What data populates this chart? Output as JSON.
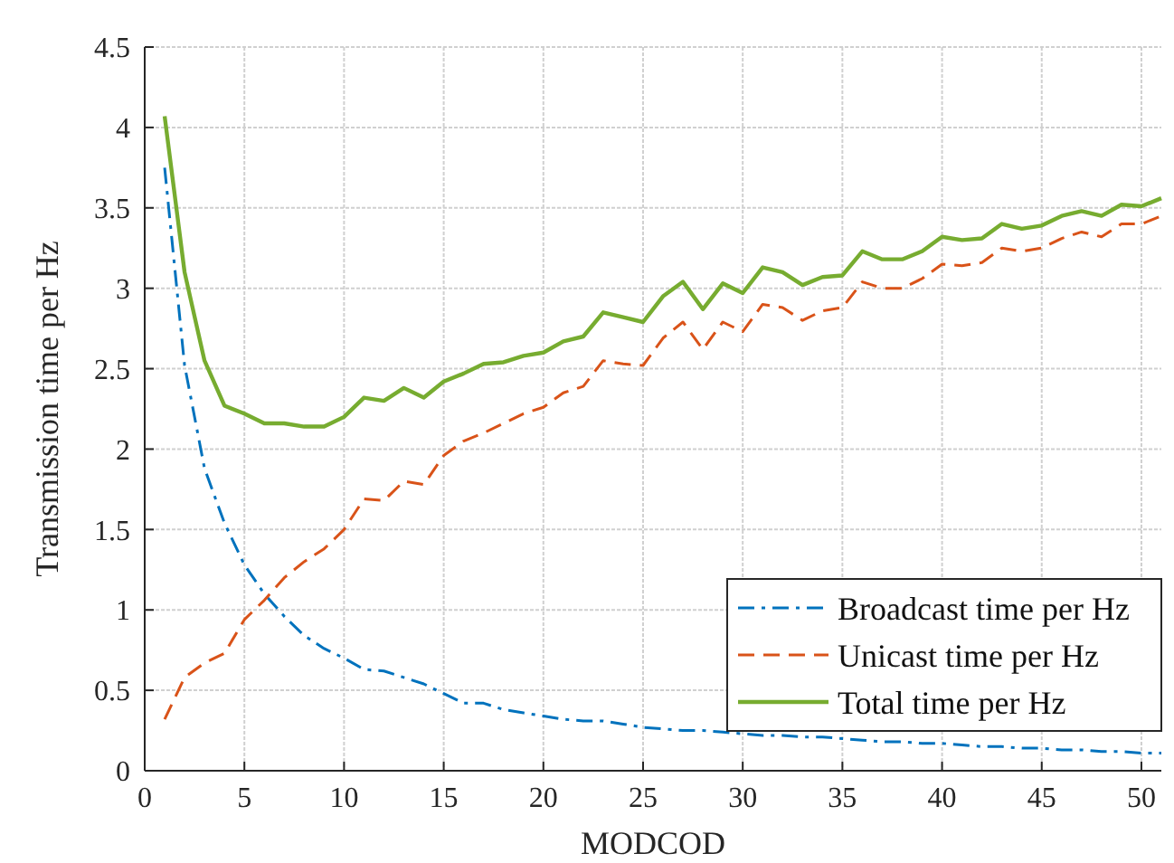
{
  "chart_data": {
    "type": "line",
    "xlabel": "MODCOD",
    "ylabel": "Transmission time per Hz",
    "x": [
      1,
      2,
      3,
      4,
      5,
      6,
      7,
      8,
      9,
      10,
      11,
      12,
      13,
      14,
      15,
      16,
      17,
      18,
      19,
      20,
      21,
      22,
      23,
      24,
      25,
      26,
      27,
      28,
      29,
      30,
      31,
      32,
      33,
      34,
      35,
      36,
      37,
      38,
      39,
      40,
      41,
      42,
      43,
      44,
      45,
      46,
      47,
      48,
      49,
      50,
      51
    ],
    "series": [
      {
        "name": "Broadcast time per Hz",
        "color": "#0072bd",
        "line_style": "dashdot",
        "values": [
          3.75,
          2.52,
          1.88,
          1.54,
          1.28,
          1.1,
          0.96,
          0.84,
          0.76,
          0.7,
          0.63,
          0.62,
          0.58,
          0.54,
          0.48,
          0.42,
          0.42,
          0.38,
          0.36,
          0.34,
          0.32,
          0.31,
          0.31,
          0.29,
          0.27,
          0.26,
          0.25,
          0.25,
          0.24,
          0.23,
          0.22,
          0.22,
          0.21,
          0.21,
          0.2,
          0.19,
          0.18,
          0.18,
          0.17,
          0.17,
          0.16,
          0.15,
          0.15,
          0.14,
          0.14,
          0.13,
          0.13,
          0.12,
          0.12,
          0.11,
          0.11
        ]
      },
      {
        "name": "Unicast time per Hz",
        "color": "#d95319",
        "line_style": "dashed",
        "values": [
          0.32,
          0.58,
          0.67,
          0.73,
          0.94,
          1.06,
          1.2,
          1.3,
          1.38,
          1.5,
          1.69,
          1.68,
          1.8,
          1.78,
          1.96,
          2.05,
          2.1,
          2.16,
          2.22,
          2.26,
          2.35,
          2.39,
          2.55,
          2.53,
          2.52,
          2.69,
          2.79,
          2.62,
          2.79,
          2.73,
          2.9,
          2.88,
          2.8,
          2.86,
          2.88,
          3.04,
          3.0,
          3.0,
          3.06,
          3.15,
          3.14,
          3.16,
          3.25,
          3.23,
          3.25,
          3.31,
          3.35,
          3.32,
          3.4,
          3.4,
          3.45
        ]
      },
      {
        "name": "Total time per Hz",
        "color": "#77ac30",
        "line_style": "solid",
        "values": [
          4.07,
          3.1,
          2.55,
          2.27,
          2.22,
          2.16,
          2.16,
          2.14,
          2.14,
          2.2,
          2.32,
          2.3,
          2.38,
          2.32,
          2.42,
          2.47,
          2.53,
          2.54,
          2.58,
          2.6,
          2.67,
          2.7,
          2.85,
          2.82,
          2.79,
          2.95,
          3.04,
          2.87,
          3.03,
          2.97,
          3.13,
          3.1,
          3.02,
          3.07,
          3.08,
          3.23,
          3.18,
          3.18,
          3.23,
          3.32,
          3.3,
          3.31,
          3.4,
          3.37,
          3.39,
          3.45,
          3.48,
          3.45,
          3.52,
          3.51,
          3.56
        ]
      }
    ],
    "xlim": [
      0,
      51
    ],
    "xticks": [
      0,
      5,
      10,
      15,
      20,
      25,
      30,
      35,
      40,
      45,
      50
    ],
    "ylim": [
      0,
      4.5
    ],
    "yticks": [
      0,
      0.5,
      1,
      1.5,
      2,
      2.5,
      3,
      3.5,
      4,
      4.5
    ],
    "grid": true,
    "legend": "bottom right"
  }
}
